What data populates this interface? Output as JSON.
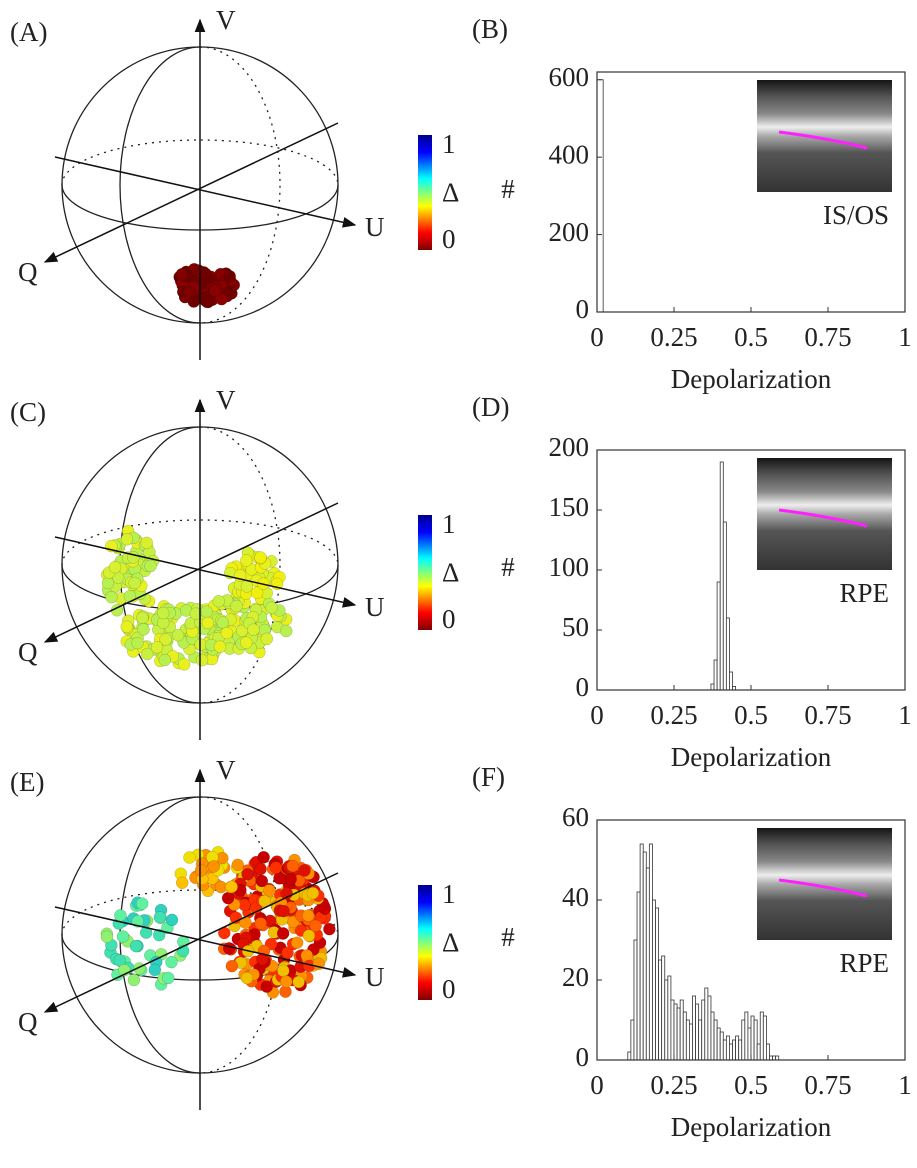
{
  "chart_data": [
    {
      "type": "sphere",
      "panel": "(A)",
      "axes": [
        "V",
        "U",
        "Q"
      ],
      "colorbar_label": "Δ",
      "clim": [
        0,
        1
      ],
      "cticks": [
        0,
        1
      ]
    },
    {
      "type": "histogram",
      "panel": "(B)",
      "inset_label": "IS/OS",
      "xlabel": "Depolarization",
      "ylabel": "#",
      "bins": [
        0,
        0.02
      ],
      "counts": [
        600
      ],
      "xlim": [
        0,
        1
      ],
      "ylim": [
        0,
        620
      ],
      "xticks": [
        0,
        0.25,
        0.5,
        0.75,
        1
      ],
      "yticks": [
        0,
        200,
        400,
        600
      ]
    },
    {
      "type": "sphere",
      "panel": "(C)",
      "axes": [
        "V",
        "U",
        "Q"
      ],
      "colorbar_label": "Δ",
      "clim": [
        0,
        1
      ],
      "cticks": [
        0,
        1
      ]
    },
    {
      "type": "histogram",
      "panel": "(D)",
      "inset_label": "RPE",
      "xlabel": "Depolarization",
      "ylabel": "#",
      "bins": [
        0.37,
        0.38,
        0.39,
        0.4,
        0.41,
        0.42,
        0.43,
        0.44,
        0.45
      ],
      "counts": [
        5,
        25,
        90,
        190,
        140,
        60,
        15,
        3
      ],
      "xlim": [
        0,
        1
      ],
      "ylim": [
        0,
        200
      ],
      "xticks": [
        0,
        0.25,
        0.5,
        0.75,
        1
      ],
      "yticks": [
        0,
        50,
        100,
        150,
        200
      ]
    },
    {
      "type": "sphere",
      "panel": "(E)",
      "axes": [
        "V",
        "U",
        "Q"
      ],
      "colorbar_label": "Δ",
      "clim": [
        0,
        1
      ],
      "cticks": [
        0,
        1
      ]
    },
    {
      "type": "histogram",
      "panel": "(F)",
      "inset_label": "RPE",
      "xlabel": "Depolarization",
      "ylabel": "#",
      "bins": [
        0.1,
        0.11,
        0.12,
        0.13,
        0.14,
        0.15,
        0.16,
        0.17,
        0.18,
        0.19,
        0.2,
        0.21,
        0.22,
        0.23,
        0.24,
        0.25,
        0.26,
        0.27,
        0.28,
        0.29,
        0.3,
        0.31,
        0.32,
        0.33,
        0.34,
        0.35,
        0.36,
        0.37,
        0.38,
        0.39,
        0.4,
        0.41,
        0.42,
        0.43,
        0.44,
        0.45,
        0.46,
        0.47,
        0.48,
        0.49,
        0.5,
        0.51,
        0.52,
        0.53,
        0.54,
        0.55,
        0.56,
        0.57,
        0.58,
        0.59,
        0.6
      ],
      "counts": [
        2,
        10,
        30,
        42,
        54,
        52,
        48,
        54,
        40,
        38,
        25,
        26,
        20,
        21,
        15,
        14,
        13,
        15,
        12,
        10,
        9,
        16,
        14,
        10,
        15,
        18,
        16,
        12,
        10,
        8,
        7,
        5,
        6,
        4,
        5,
        6,
        5,
        10,
        12,
        8,
        11,
        10,
        4,
        12,
        11,
        4,
        1,
        1,
        1,
        0
      ],
      "xlim": [
        0,
        1
      ],
      "ylim": [
        0,
        60
      ],
      "xticks": [
        0,
        0.25,
        0.5,
        0.75,
        1
      ],
      "yticks": [
        0,
        20,
        40,
        60
      ]
    }
  ]
}
